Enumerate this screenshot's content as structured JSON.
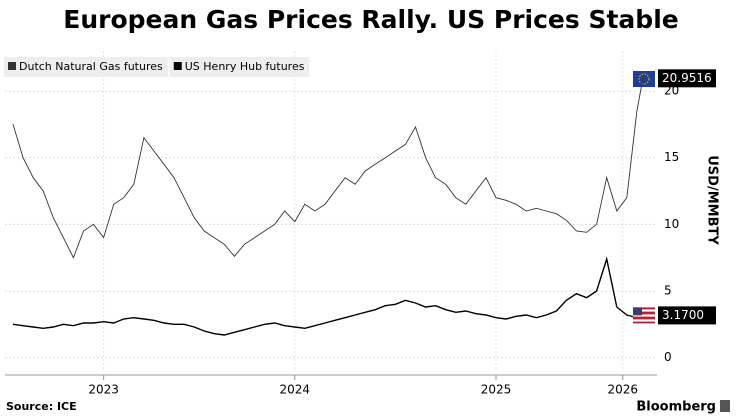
{
  "chart_data": {
    "type": "line",
    "title": "European Gas Prices Rally. US Prices Stable",
    "y_label": "USD/MMBTY",
    "source": "Source: ICE",
    "logo": "Bloomberg",
    "x": [
      2023.1,
      2023.15,
      2023.2,
      2023.25,
      2023.3,
      2023.35,
      2023.4,
      2023.45,
      2023.5,
      2023.55,
      2023.6,
      2023.65,
      2023.7,
      2023.75,
      2023.8,
      2023.85,
      2023.9,
      2023.95,
      2024.0,
      2024.05,
      2024.1,
      2024.15,
      2024.2,
      2024.25,
      2024.3,
      2024.35,
      2024.4,
      2024.45,
      2024.5,
      2024.55,
      2024.6,
      2024.65,
      2024.7,
      2024.75,
      2024.8,
      2024.85,
      2024.9,
      2024.95,
      2025.0,
      2025.05,
      2025.1,
      2025.15,
      2025.2,
      2025.25,
      2025.3,
      2025.35,
      2025.4,
      2025.45,
      2025.5,
      2025.55,
      2025.6,
      2025.65,
      2025.7,
      2025.75,
      2025.8,
      2025.85,
      2025.9,
      2025.95,
      2026.0,
      2026.05,
      2026.1,
      2026.15,
      2026.2,
      2026.23
    ],
    "series": [
      {
        "name": "Dutch Natural Gas futures",
        "color": "#333333",
        "values": [
          17.5,
          15,
          13.5,
          12.5,
          10.5,
          9,
          7.5,
          9.5,
          10,
          9,
          11.5,
          12,
          13,
          16.5,
          15.5,
          14.5,
          13.5,
          12,
          10.5,
          9.5,
          9,
          8.5,
          7.6,
          8.5,
          9,
          9.5,
          10,
          11,
          10.2,
          11.5,
          11,
          11.5,
          12.5,
          13.5,
          13,
          14,
          14.5,
          15,
          15.5,
          16,
          17.3,
          15,
          13.5,
          13,
          12,
          11.5,
          12.5,
          13.5,
          12,
          11.8,
          11.5,
          11,
          11.2,
          11,
          10.8,
          10.3,
          9.5,
          9.4,
          10,
          13.5,
          11,
          12,
          18.5,
          20.9516
        ]
      },
      {
        "name": "US Henry Hub futures",
        "color": "#000000",
        "values": [
          2.5,
          2.4,
          2.3,
          2.2,
          2.3,
          2.5,
          2.4,
          2.6,
          2.6,
          2.7,
          2.6,
          2.9,
          3.0,
          2.9,
          2.8,
          2.6,
          2.5,
          2.5,
          2.3,
          2.0,
          1.8,
          1.7,
          1.9,
          2.1,
          2.3,
          2.5,
          2.6,
          2.4,
          2.3,
          2.2,
          2.4,
          2.6,
          2.8,
          3.0,
          3.2,
          3.4,
          3.6,
          3.9,
          4.0,
          4.3,
          4.1,
          3.8,
          3.9,
          3.6,
          3.4,
          3.5,
          3.3,
          3.2,
          3.0,
          2.9,
          3.1,
          3.2,
          3.0,
          3.2,
          3.5,
          4.3,
          4.8,
          4.5,
          5.0,
          7.4,
          3.8,
          3.2,
          3.0,
          3.17
        ],
        "value_labels": [
          null,
          null,
          null,
          null,
          null,
          null,
          null,
          null,
          null,
          null,
          null,
          null,
          null,
          null,
          null,
          null,
          null,
          null,
          null,
          null,
          null,
          null,
          null,
          null,
          null,
          null,
          null,
          null,
          null,
          null,
          null,
          null,
          null,
          null,
          null,
          null,
          null,
          null,
          null,
          null,
          null,
          null,
          null,
          null,
          null,
          null,
          null,
          null,
          null,
          null,
          null,
          null,
          null,
          null,
          null,
          null,
          null,
          null,
          null,
          null,
          null,
          null,
          null,
          "3.1700"
        ]
      }
    ],
    "xlim": [
      2023.06,
      2026.3
    ],
    "xticks": [
      {
        "value": 2023.55,
        "label": "2023"
      },
      {
        "value": 2024.5,
        "label": "2024"
      },
      {
        "value": 2025.5,
        "label": "2025"
      },
      {
        "value": 2026.13,
        "label": "2026"
      }
    ],
    "ylim": [
      -1,
      23
    ],
    "yticks": [
      0,
      5,
      10,
      15,
      20
    ],
    "grid": true
  }
}
